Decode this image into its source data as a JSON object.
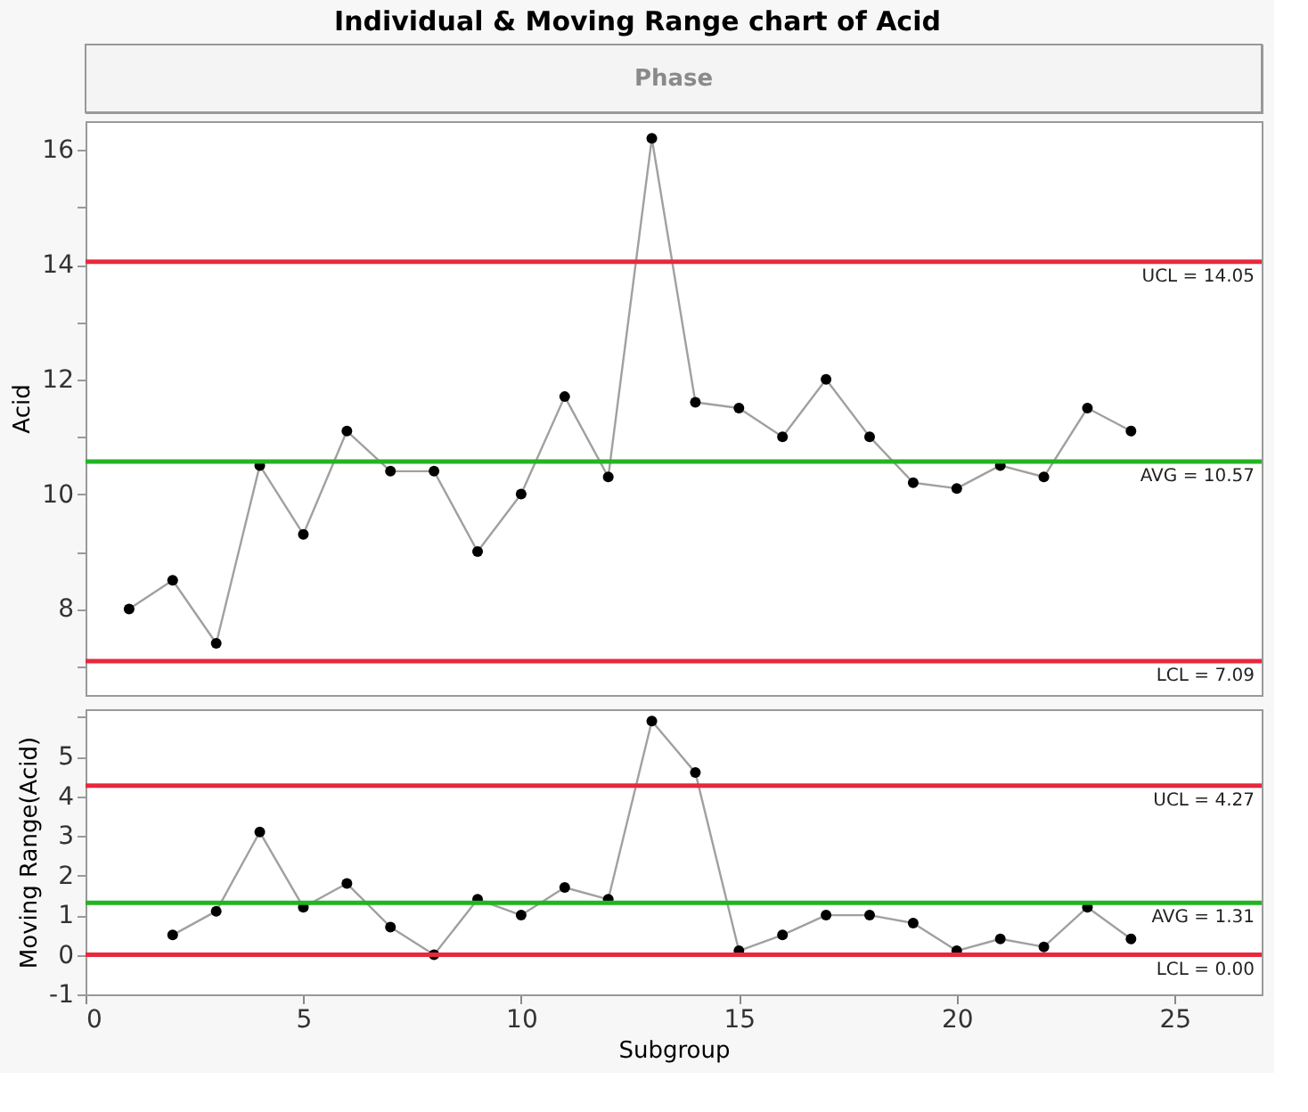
{
  "chart_data": [
    {
      "type": "line",
      "title": "Individual & Moving Range chart of Acid",
      "annotations": [
        "Phase"
      ],
      "ylabel": "Acid",
      "x": [
        1,
        2,
        3,
        4,
        5,
        6,
        7,
        8,
        9,
        10,
        11,
        12,
        13,
        14,
        15,
        16,
        17,
        18,
        19,
        20,
        21,
        22,
        23,
        24
      ],
      "series": [
        {
          "color": "#000000",
          "values": [
            8.0,
            8.5,
            7.4,
            10.5,
            9.3,
            11.1,
            10.4,
            10.4,
            9.0,
            10.0,
            11.7,
            10.3,
            16.2,
            11.6,
            11.5,
            11.0,
            12.0,
            11.0,
            10.2,
            10.1,
            10.5,
            10.3,
            11.5,
            11.1
          ]
        }
      ],
      "marker": "circle",
      "xlim": [
        0,
        27
      ],
      "ylim": [
        6.5,
        16.5
      ],
      "yticks": [
        {
          "value": 7,
          "label": null
        },
        8,
        {
          "value": 9,
          "label": null
        },
        10,
        {
          "value": 11,
          "label": null
        },
        12,
        {
          "value": 13,
          "label": null
        },
        14,
        {
          "value": 15,
          "label": null
        },
        16
      ],
      "tick_labels": "y",
      "grid": false,
      "ref_lines": [
        {
          "axis": "y",
          "value": 14.05,
          "label": "UCL = 14.05",
          "color": "#e8283c"
        },
        {
          "axis": "y",
          "value": 10.57,
          "label": "AVG = 10.57",
          "color": "#22b422"
        },
        {
          "axis": "y",
          "value": 7.09,
          "label": "LCL = 7.09",
          "color": "#e8283c"
        }
      ]
    },
    {
      "type": "line",
      "xlabel": "Subgroup",
      "ylabel": "Moving Range(Acid)",
      "x": [
        2,
        3,
        4,
        5,
        6,
        7,
        8,
        9,
        10,
        11,
        12,
        13,
        14,
        15,
        16,
        17,
        18,
        19,
        20,
        21,
        22,
        23,
        24
      ],
      "series": [
        {
          "color": "#000000",
          "values": [
            0.5,
            1.1,
            3.1,
            1.2,
            1.8,
            0.7,
            0.0,
            1.4,
            1.0,
            1.7,
            1.4,
            5.9,
            4.6,
            0.1,
            0.5,
            1.0,
            1.0,
            0.8,
            0.1,
            0.4,
            0.2,
            1.2,
            0.4
          ]
        }
      ],
      "marker": "circle",
      "xlim": [
        0,
        27
      ],
      "ylim": [
        -1,
        6.2
      ],
      "xticks": [
        0,
        5,
        10,
        15,
        20,
        25
      ],
      "yticks": [
        -1,
        0,
        1,
        2,
        3,
        4,
        5,
        {
          "value": 6,
          "label": null
        }
      ],
      "grid": false,
      "ref_lines": [
        {
          "axis": "y",
          "value": 4.27,
          "label": "UCL = 4.27",
          "color": "#e8283c"
        },
        {
          "axis": "y",
          "value": 1.31,
          "label": "AVG = 1.31",
          "color": "#22b422"
        },
        {
          "axis": "y",
          "value": 0.0,
          "label": "LCL = 0.00",
          "color": "#e8283c"
        }
      ]
    }
  ]
}
